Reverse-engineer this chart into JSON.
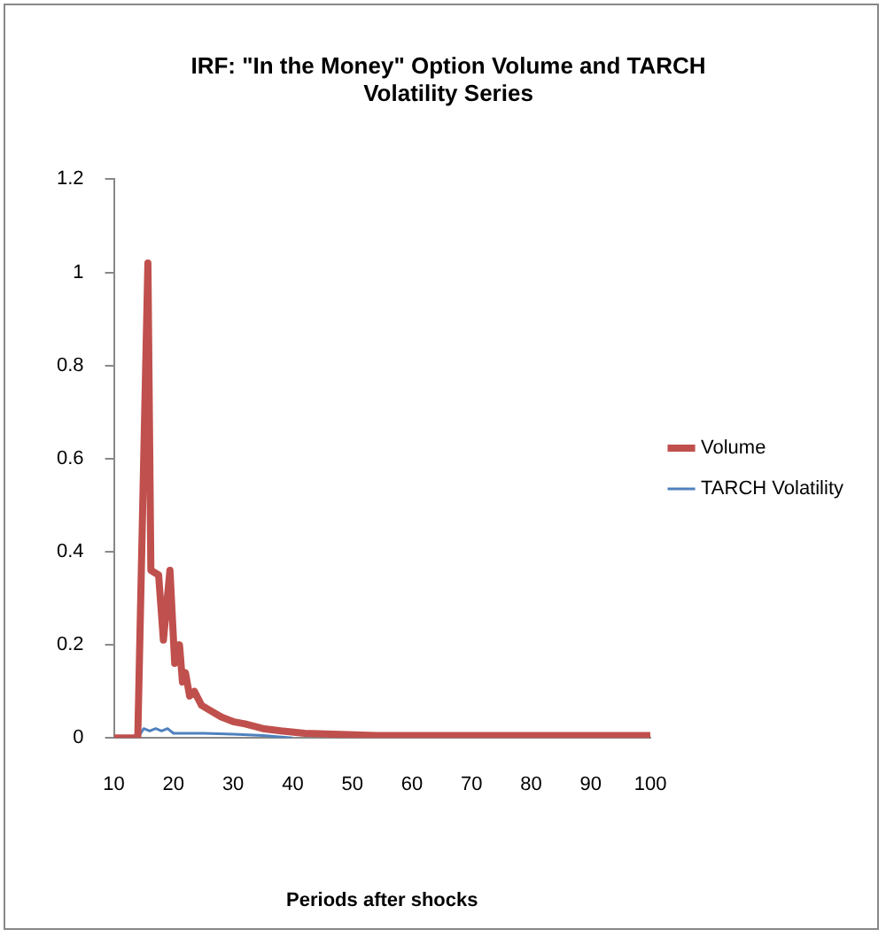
{
  "chart_data": {
    "type": "line",
    "title": "IRF: \"In the Money\" Option Volume and TARCH Volatility Series",
    "xlabel": "Periods after shocks",
    "series": [
      {
        "name": "Volume",
        "color": "#c0504d",
        "x": [
          10,
          14,
          15.7,
          16.2,
          17.5,
          18.3,
          19.4,
          20.2,
          21,
          21.5,
          22,
          22.7,
          23.5,
          24.7,
          26,
          28,
          30,
          32,
          35,
          38,
          42,
          54,
          100
        ],
        "values": [
          0,
          0,
          1.02,
          0.36,
          0.35,
          0.21,
          0.36,
          0.16,
          0.2,
          0.12,
          0.14,
          0.09,
          0.1,
          0.07,
          0.06,
          0.045,
          0.035,
          0.03,
          0.02,
          0.015,
          0.01,
          0.005,
          0.005
        ]
      },
      {
        "name": "TARCH Volatility",
        "color": "#4f81bd",
        "x": [
          10,
          14,
          15,
          16,
          17,
          18,
          19,
          20,
          25,
          30,
          35,
          40
        ],
        "values": [
          0,
          0,
          0.02,
          0.015,
          0.02,
          0.015,
          0.02,
          0.01,
          0.01,
          0.008,
          0.005,
          0
        ]
      }
    ],
    "xlim": [
      10,
      100
    ],
    "xticks": [
      10,
      20,
      30,
      40,
      50,
      60,
      70,
      80,
      90,
      100
    ],
    "ylim": [
      0,
      1.2
    ],
    "yticks": [
      0,
      0.2,
      0.4,
      0.6,
      0.8,
      1,
      1.2
    ],
    "grid": false,
    "legend": "right",
    "marker": "none",
    "line_style": "solid"
  }
}
